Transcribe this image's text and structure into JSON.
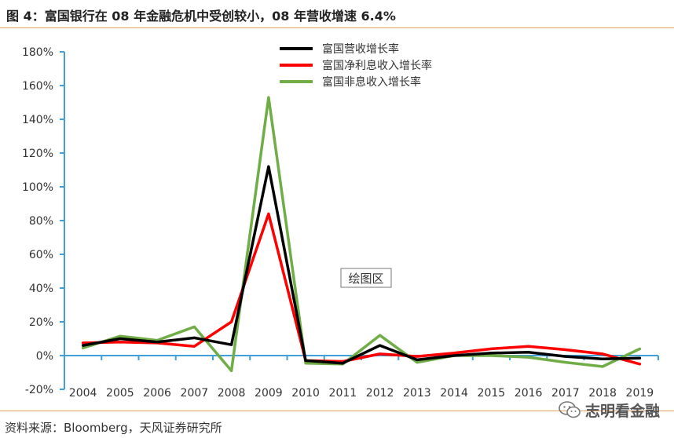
{
  "header": {
    "title": "图 4：富国银行在 08 年金融危机中受创较小，08 年营收增速 6.4%"
  },
  "footer": {
    "source": "资料来源：Bloomberg，天风证券研究所"
  },
  "watermark": {
    "text": "志明看金融",
    "icon": "wechat-icon"
  },
  "chart_data": {
    "type": "line",
    "title": "",
    "xlabel": "",
    "ylabel": "",
    "categories": [
      "2004",
      "2005",
      "2006",
      "2007",
      "2008",
      "2009",
      "2010",
      "2011",
      "2012",
      "2013",
      "2014",
      "2015",
      "2016",
      "2017",
      "2018",
      "2019"
    ],
    "ylim": [
      -20,
      180
    ],
    "yticks": [
      -20,
      0,
      20,
      40,
      60,
      80,
      100,
      120,
      140,
      160,
      180
    ],
    "ytick_labels": [
      "-20%",
      "0%",
      "20%",
      "40%",
      "60%",
      "80%",
      "100%",
      "120%",
      "140%",
      "160%",
      "180%"
    ],
    "grid": false,
    "legend_position": "top-center",
    "plot_area_label": "绘图区",
    "series": [
      {
        "name": "富国营收增长率",
        "color": "#000000",
        "values": [
          6,
          10,
          8,
          10.5,
          6.4,
          112,
          -3,
          -4.5,
          6,
          -2.5,
          0,
          1.5,
          2,
          -0.5,
          -2,
          -1.5
        ]
      },
      {
        "name": "富国净利息收入增长率",
        "color": "#ff0000",
        "values": [
          7.5,
          8,
          7.5,
          5.5,
          20,
          84,
          -3,
          -3.5,
          1,
          -0.5,
          1.5,
          4,
          5.5,
          3.5,
          1,
          -5
        ]
      },
      {
        "name": "富国非息收入增长率",
        "color": "#70ad47",
        "values": [
          4.5,
          11.5,
          9,
          17,
          -9,
          153,
          -4.5,
          -5,
          12,
          -4,
          0,
          0,
          -1,
          -4,
          -6.5,
          4
        ]
      }
    ]
  }
}
